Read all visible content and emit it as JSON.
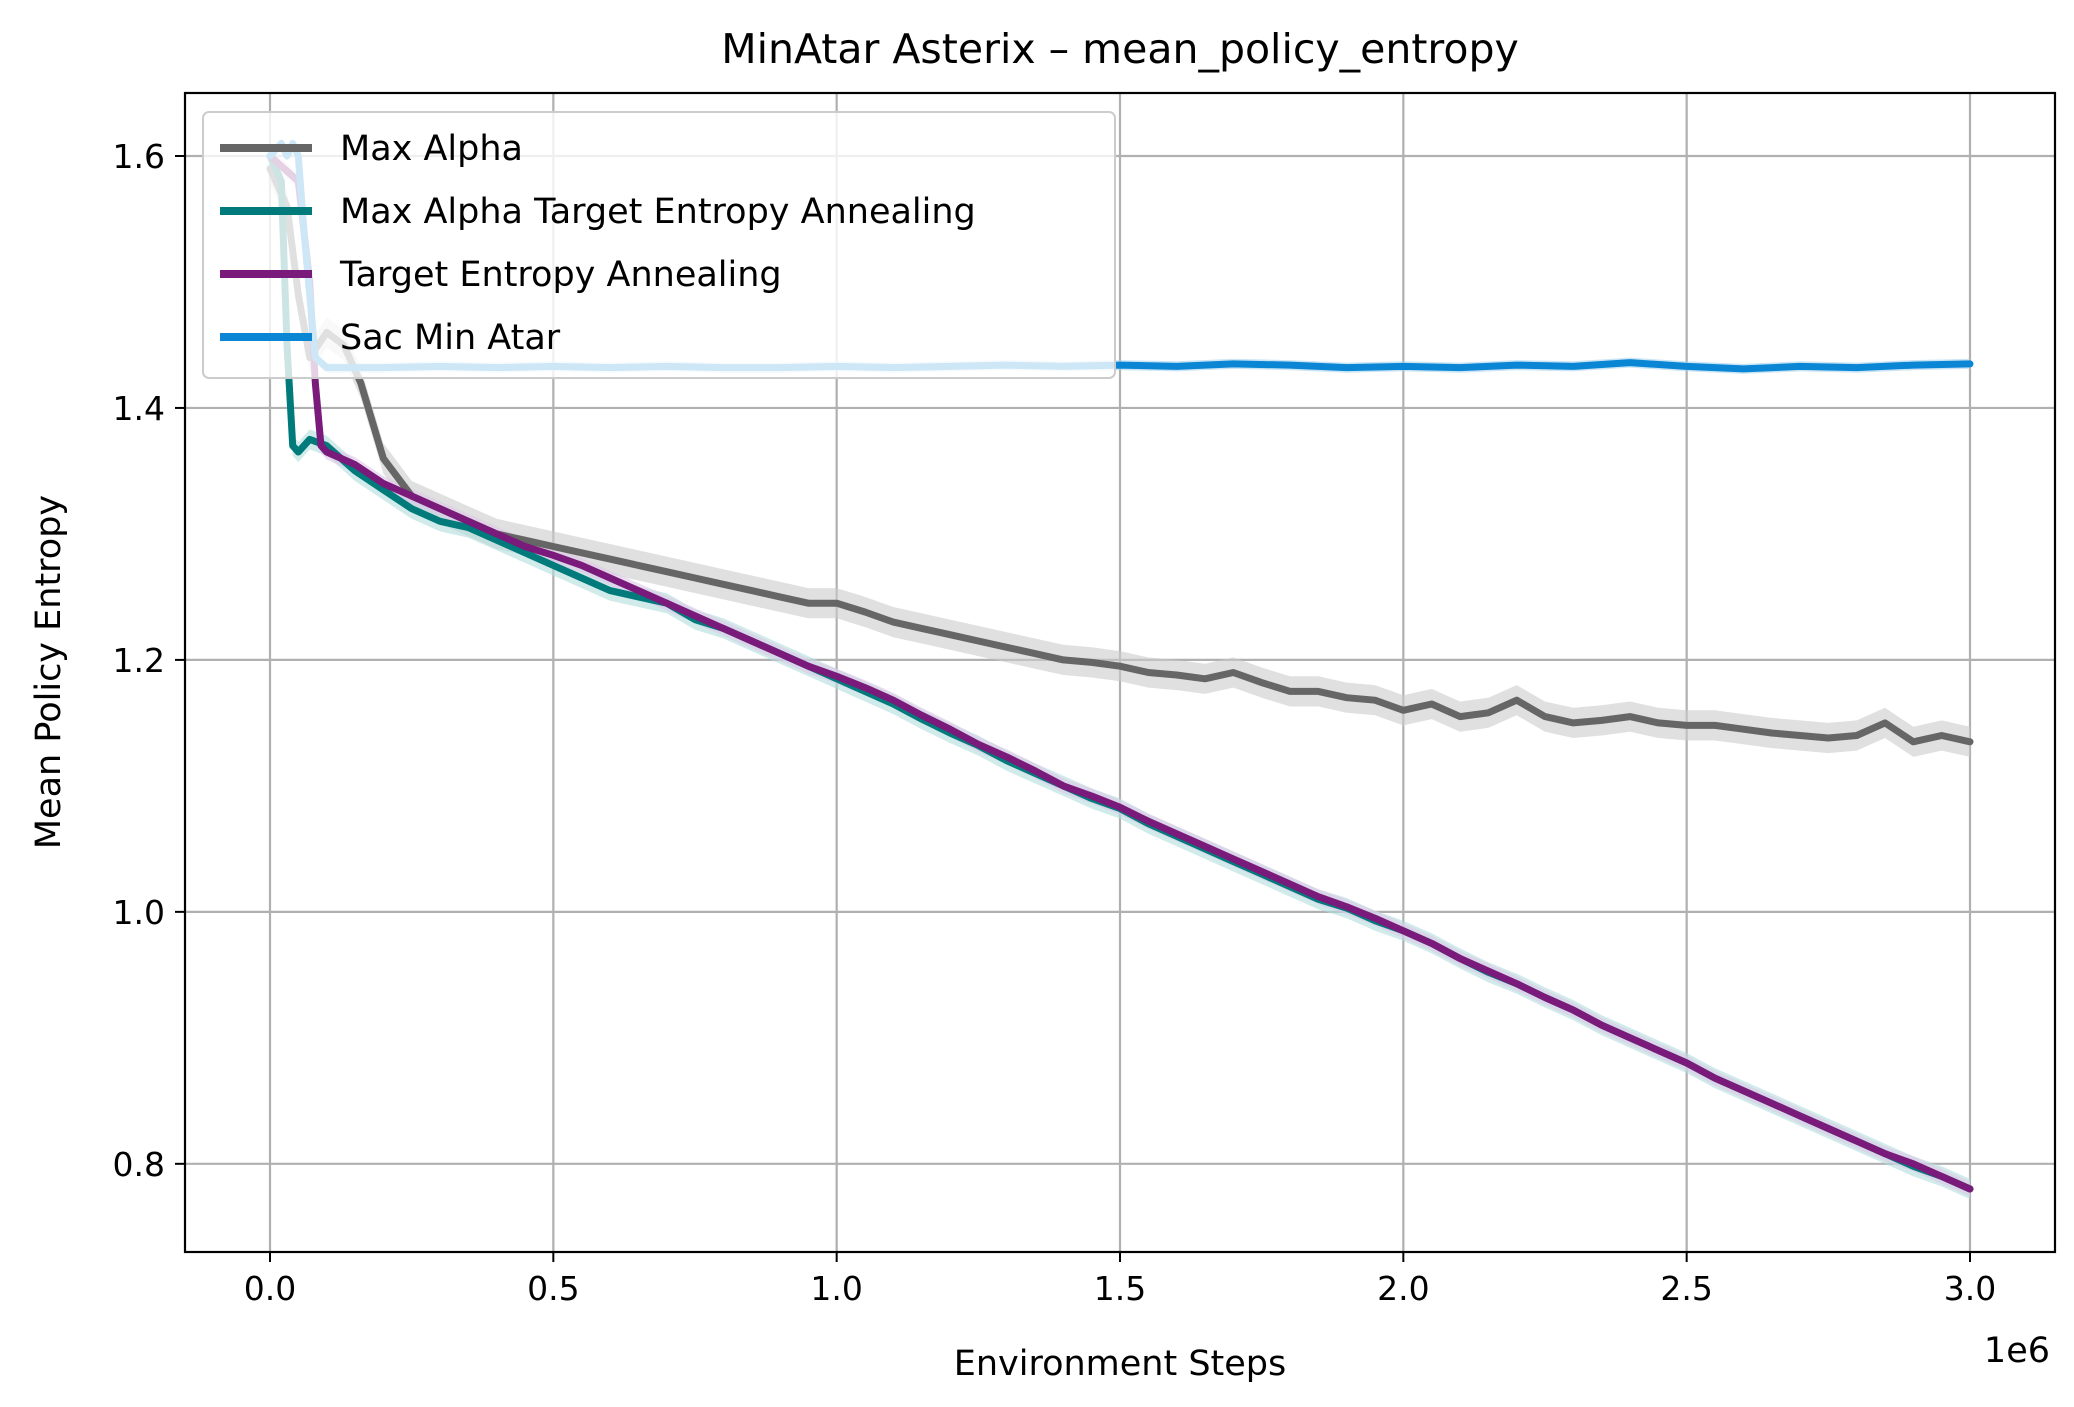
{
  "chart_data": {
    "type": "line",
    "title": "MinAtar Asterix – mean_policy_entropy",
    "xlabel": "Environment Steps",
    "ylabel": "Mean Policy Entropy",
    "x_scale_label": "1e6",
    "xlim": [
      -0.15,
      3.15
    ],
    "ylim": [
      0.73,
      1.65
    ],
    "xticks": [
      0.0,
      0.5,
      1.0,
      1.5,
      2.0,
      2.5,
      3.0
    ],
    "xtick_labels": [
      "0.0",
      "0.5",
      "1.0",
      "1.5",
      "2.0",
      "2.5",
      "3.0"
    ],
    "yticks": [
      0.8,
      1.0,
      1.2,
      1.4,
      1.6
    ],
    "ytick_labels": [
      "0.8",
      "1.0",
      "1.2",
      "1.4",
      "1.6"
    ],
    "grid": true,
    "legend_position": "top-left",
    "series": [
      {
        "name": "Max Alpha",
        "color": "#666666",
        "band_color": "#cccccc",
        "x": [
          0.0,
          0.03,
          0.05,
          0.07,
          0.1,
          0.13,
          0.16,
          0.2,
          0.25,
          0.3,
          0.35,
          0.4,
          0.45,
          0.5,
          0.55,
          0.6,
          0.65,
          0.7,
          0.75,
          0.8,
          0.85,
          0.9,
          0.95,
          1.0,
          1.05,
          1.1,
          1.15,
          1.2,
          1.25,
          1.3,
          1.35,
          1.4,
          1.45,
          1.5,
          1.55,
          1.6,
          1.65,
          1.7,
          1.75,
          1.8,
          1.85,
          1.9,
          1.95,
          2.0,
          2.05,
          2.1,
          2.15,
          2.2,
          2.25,
          2.3,
          2.35,
          2.4,
          2.45,
          2.5,
          2.55,
          2.6,
          2.65,
          2.7,
          2.75,
          2.8,
          2.85,
          2.9,
          2.95,
          3.0
        ],
        "y": [
          1.59,
          1.56,
          1.49,
          1.44,
          1.46,
          1.45,
          1.42,
          1.36,
          1.33,
          1.32,
          1.31,
          1.3,
          1.295,
          1.29,
          1.285,
          1.28,
          1.275,
          1.27,
          1.265,
          1.26,
          1.255,
          1.25,
          1.245,
          1.245,
          1.238,
          1.23,
          1.225,
          1.22,
          1.215,
          1.21,
          1.205,
          1.2,
          1.198,
          1.195,
          1.19,
          1.188,
          1.185,
          1.19,
          1.182,
          1.175,
          1.175,
          1.17,
          1.168,
          1.16,
          1.165,
          1.155,
          1.158,
          1.168,
          1.155,
          1.15,
          1.152,
          1.155,
          1.15,
          1.148,
          1.148,
          1.145,
          1.142,
          1.14,
          1.138,
          1.14,
          1.15,
          1.135,
          1.14,
          1.135
        ],
        "band": 0.012
      },
      {
        "name": "Max Alpha Target Entropy Annealing",
        "color": "#007a7a",
        "band_color": "#b2dede",
        "x": [
          0.0,
          0.02,
          0.03,
          0.04,
          0.05,
          0.07,
          0.1,
          0.15,
          0.2,
          0.25,
          0.3,
          0.35,
          0.4,
          0.45,
          0.5,
          0.55,
          0.6,
          0.65,
          0.7,
          0.75,
          0.8,
          0.85,
          0.9,
          0.95,
          1.0,
          1.05,
          1.1,
          1.15,
          1.2,
          1.25,
          1.3,
          1.35,
          1.4,
          1.45,
          1.5,
          1.55,
          1.6,
          1.65,
          1.7,
          1.75,
          1.8,
          1.85,
          1.9,
          1.95,
          2.0,
          2.05,
          2.1,
          2.15,
          2.2,
          2.25,
          2.3,
          2.35,
          2.4,
          2.45,
          2.5,
          2.55,
          2.6,
          2.65,
          2.7,
          2.75,
          2.8,
          2.85,
          2.9,
          2.95,
          3.0
        ],
        "y": [
          1.6,
          1.58,
          1.45,
          1.37,
          1.365,
          1.375,
          1.37,
          1.35,
          1.335,
          1.32,
          1.31,
          1.305,
          1.295,
          1.285,
          1.275,
          1.265,
          1.255,
          1.25,
          1.245,
          1.232,
          1.225,
          1.215,
          1.205,
          1.195,
          1.185,
          1.175,
          1.165,
          1.153,
          1.142,
          1.132,
          1.12,
          1.11,
          1.1,
          1.09,
          1.082,
          1.07,
          1.06,
          1.05,
          1.04,
          1.03,
          1.02,
          1.01,
          1.003,
          0.993,
          0.985,
          0.975,
          0.963,
          0.952,
          0.943,
          0.932,
          0.922,
          0.91,
          0.9,
          0.89,
          0.88,
          0.868,
          0.858,
          0.848,
          0.838,
          0.828,
          0.818,
          0.808,
          0.798,
          0.79,
          0.78
        ],
        "band": 0.008
      },
      {
        "name": "Target Entropy Annealing",
        "color": "#7a1a7a",
        "band_color": "#e0c8e8",
        "x": [
          0.0,
          0.05,
          0.07,
          0.08,
          0.09,
          0.1,
          0.15,
          0.2,
          0.25,
          0.3,
          0.35,
          0.4,
          0.45,
          0.5,
          0.55,
          0.6,
          0.65,
          0.7,
          0.75,
          0.8,
          0.85,
          0.9,
          0.95,
          1.0,
          1.05,
          1.1,
          1.15,
          1.2,
          1.25,
          1.3,
          1.35,
          1.4,
          1.45,
          1.5,
          1.55,
          1.6,
          1.65,
          1.7,
          1.75,
          1.8,
          1.85,
          1.9,
          1.95,
          2.0,
          2.05,
          2.1,
          2.15,
          2.2,
          2.25,
          2.3,
          2.35,
          2.4,
          2.45,
          2.5,
          2.55,
          2.6,
          2.65,
          2.7,
          2.75,
          2.8,
          2.85,
          2.9,
          2.95,
          3.0
        ],
        "y": [
          1.6,
          1.58,
          1.5,
          1.42,
          1.37,
          1.365,
          1.355,
          1.34,
          1.33,
          1.32,
          1.31,
          1.3,
          1.29,
          1.283,
          1.275,
          1.265,
          1.255,
          1.245,
          1.235,
          1.225,
          1.215,
          1.205,
          1.195,
          1.187,
          1.178,
          1.168,
          1.156,
          1.145,
          1.133,
          1.123,
          1.112,
          1.1,
          1.092,
          1.083,
          1.072,
          1.062,
          1.052,
          1.042,
          1.032,
          1.022,
          1.012,
          1.004,
          0.995,
          0.985,
          0.975,
          0.963,
          0.953,
          0.943,
          0.932,
          0.922,
          0.91,
          0.9,
          0.89,
          0.88,
          0.868,
          0.858,
          0.848,
          0.838,
          0.828,
          0.818,
          0.808,
          0.8,
          0.79,
          0.78
        ],
        "band": 0.006
      },
      {
        "name": "Sac Min Atar",
        "color": "#0a86d4",
        "band_color": "#a8d4ee",
        "x": [
          0.0,
          0.02,
          0.03,
          0.04,
          0.05,
          0.06,
          0.08,
          0.1,
          0.2,
          0.3,
          0.4,
          0.5,
          0.6,
          0.7,
          0.8,
          0.9,
          1.0,
          1.1,
          1.2,
          1.3,
          1.4,
          1.5,
          1.6,
          1.7,
          1.8,
          1.9,
          2.0,
          2.1,
          2.2,
          2.3,
          2.4,
          2.5,
          2.6,
          2.7,
          2.8,
          2.9,
          3.0
        ],
        "y": [
          1.6,
          1.61,
          1.6,
          1.61,
          1.6,
          1.54,
          1.44,
          1.432,
          1.432,
          1.433,
          1.432,
          1.433,
          1.432,
          1.433,
          1.432,
          1.432,
          1.433,
          1.432,
          1.433,
          1.434,
          1.433,
          1.434,
          1.433,
          1.435,
          1.434,
          1.432,
          1.433,
          1.432,
          1.434,
          1.433,
          1.436,
          1.433,
          1.431,
          1.433,
          1.432,
          1.434,
          1.435
        ],
        "band": 0.004
      }
    ]
  }
}
